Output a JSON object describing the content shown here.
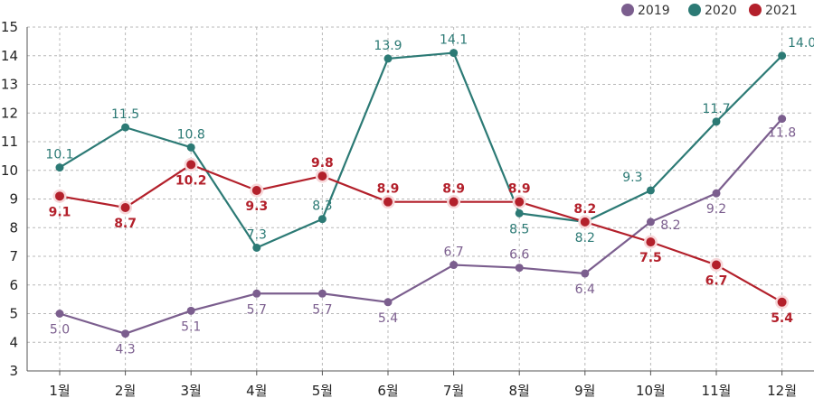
{
  "chart_data": {
    "type": "line",
    "categories": [
      "1월",
      "2월",
      "3월",
      "4월",
      "5월",
      "6월",
      "7월",
      "8월",
      "9월",
      "10월",
      "11월",
      "12월"
    ],
    "ylim": [
      3,
      15
    ],
    "yticks": [
      3,
      4,
      5,
      6,
      7,
      8,
      9,
      10,
      11,
      12,
      13,
      14,
      15
    ],
    "grid": true,
    "legend_position": "top-right",
    "series": [
      {
        "name": "2019",
        "color": "#7b5e8e",
        "values": [
          5.0,
          4.3,
          5.1,
          5.7,
          5.7,
          5.4,
          6.7,
          6.6,
          6.4,
          8.2,
          9.2,
          11.8
        ],
        "labels": [
          "5.0",
          "4.3",
          "5.1",
          "5.7",
          "5.7",
          "5.4",
          "6.7",
          "6.6",
          "6.4",
          "8.2",
          "9.2",
          "11.8"
        ]
      },
      {
        "name": "2020",
        "color": "#2c7a75",
        "values": [
          10.1,
          11.5,
          10.8,
          7.3,
          8.3,
          13.9,
          14.1,
          8.5,
          8.2,
          9.3,
          11.7,
          14.0
        ],
        "labels": [
          "10.1",
          "11.5",
          "10.8",
          "7.3",
          "8.3",
          "13.9",
          "14.1",
          "8.5",
          "8.2",
          "9.3",
          "11.7",
          "14.0"
        ]
      },
      {
        "name": "2021",
        "color": "#b3202b",
        "values": [
          9.1,
          8.7,
          10.2,
          9.3,
          9.8,
          8.9,
          8.9,
          8.9,
          8.2,
          7.5,
          6.7,
          5.4
        ],
        "labels": [
          "9.1",
          "8.7",
          "10.2",
          "9.3",
          "9.8",
          "8.9",
          "8.9",
          "8.9",
          "8.2",
          "7.5",
          "6.7",
          "5.4"
        ]
      }
    ]
  }
}
